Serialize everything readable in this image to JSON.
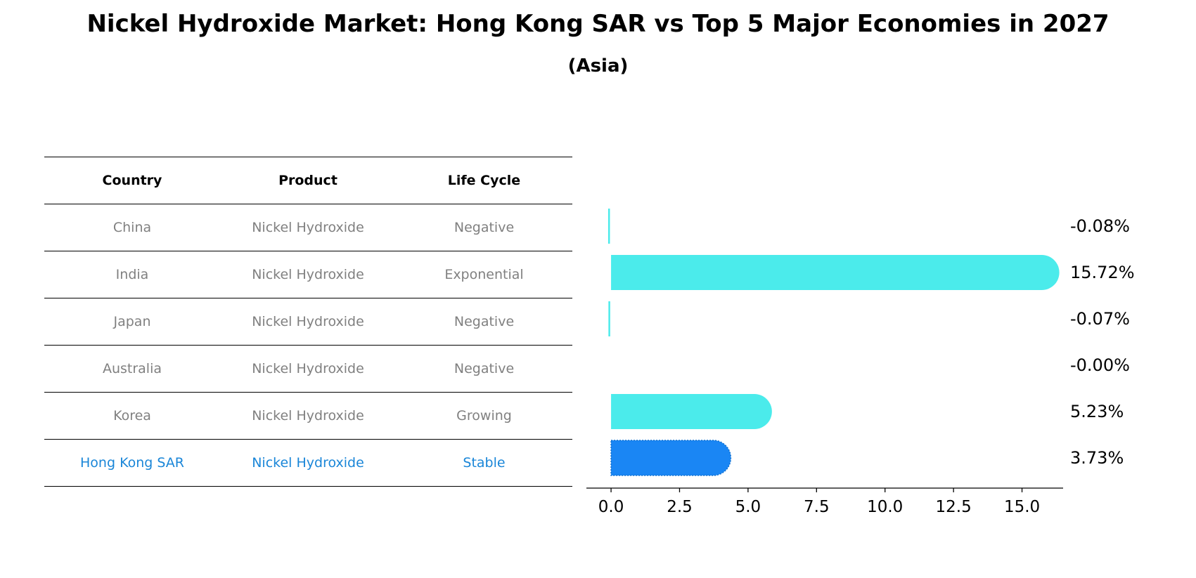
{
  "title": "Nickel Hydroxide Market: Hong Kong SAR vs Top 5 Major Economies in 2027",
  "subtitle": "(Asia)",
  "table": {
    "headers": [
      "Country",
      "Product",
      "Life Cycle"
    ],
    "rows": [
      {
        "country": "China",
        "product": "Nickel Hydroxide",
        "life_cycle": "Negative"
      },
      {
        "country": "India",
        "product": "Nickel Hydroxide",
        "life_cycle": "Exponential"
      },
      {
        "country": "Japan",
        "product": "Nickel Hydroxide",
        "life_cycle": "Negative"
      },
      {
        "country": "Australia",
        "product": "Nickel Hydroxide",
        "life_cycle": "Negative"
      },
      {
        "country": "Korea",
        "product": "Nickel Hydroxide",
        "life_cycle": "Growing"
      },
      {
        "country": "Hong Kong SAR",
        "product": "Nickel Hydroxide",
        "life_cycle": "Stable"
      }
    ]
  },
  "colors": {
    "bar": "#4bebeb",
    "highlight_bar": "#1a86f4",
    "highlight_text": "#1a86d8",
    "row_text": "#808080"
  },
  "chart_data": {
    "type": "bar",
    "orientation": "horizontal",
    "categories": [
      "China",
      "India",
      "Japan",
      "Australia",
      "Korea",
      "Hong Kong SAR"
    ],
    "values": [
      -0.08,
      15.72,
      -0.07,
      -0.0,
      5.23,
      3.73
    ],
    "value_labels": [
      "-0.08%",
      "15.72%",
      "-0.07%",
      "-0.00%",
      "5.23%",
      "3.73%"
    ],
    "highlight": "Hong Kong SAR",
    "xlim": [
      -0.9,
      16.5
    ],
    "xticks": [
      0.0,
      2.5,
      5.0,
      7.5,
      10.0,
      12.5,
      15.0
    ],
    "xtick_labels": [
      "0.0",
      "2.5",
      "5.0",
      "7.5",
      "10.0",
      "12.5",
      "15.0"
    ],
    "grid": false,
    "legend": "none"
  }
}
